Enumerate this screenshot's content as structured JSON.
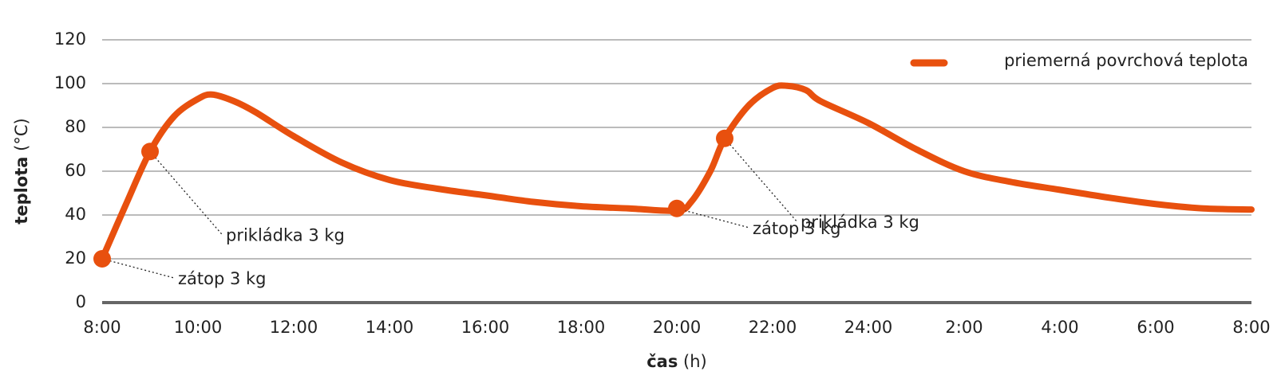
{
  "chart_data": {
    "type": "line",
    "ylabel": "teplota",
    "ylabel_unit": "(°C)",
    "xlabel": "čas",
    "xlabel_unit": "(h)",
    "xlim": [
      8,
      32
    ],
    "xticks": [
      {
        "value": 8,
        "label": "8:00"
      },
      {
        "value": 10,
        "label": "10:00"
      },
      {
        "value": 12,
        "label": "12:00"
      },
      {
        "value": 14,
        "label": "14:00"
      },
      {
        "value": 16,
        "label": "16:00"
      },
      {
        "value": 18,
        "label": "18:00"
      },
      {
        "value": 20,
        "label": "20:00"
      },
      {
        "value": 22,
        "label": "22:00"
      },
      {
        "value": 24,
        "label": "24:00"
      },
      {
        "value": 26,
        "label": "2:00"
      },
      {
        "value": 28,
        "label": "4:00"
      },
      {
        "value": 30,
        "label": "6:00"
      },
      {
        "value": 32,
        "label": "8:00"
      }
    ],
    "ylim": [
      0,
      120
    ],
    "yticks": [
      0,
      20,
      40,
      60,
      80,
      100,
      120
    ],
    "grid": true,
    "legend": "top-right",
    "series": [
      {
        "name": "priemerná povrchová teplota",
        "color": "#e8500e",
        "x": [
          8,
          8.5,
          9,
          9.5,
          10,
          10.3,
          10.75,
          11.2,
          12,
          13,
          14,
          15,
          16,
          17,
          18,
          19,
          20,
          20.3,
          20.7,
          21,
          21.5,
          22,
          22.3,
          22.7,
          23,
          24,
          25,
          26,
          27,
          28,
          29,
          30,
          31,
          32
        ],
        "y": [
          20,
          45,
          69,
          85,
          93,
          95,
          92,
          87,
          76,
          64,
          56,
          52,
          49,
          46,
          44,
          43,
          42,
          46,
          60,
          75,
          90,
          98,
          99,
          97,
          92,
          82,
          70,
          60,
          55,
          51.5,
          48,
          45,
          43,
          42.5
        ]
      }
    ],
    "annotations": [
      {
        "text": "zátop 3 kg",
        "x": 8,
        "y": 20
      },
      {
        "text": "prikládka 3 kg",
        "x": 9,
        "y": 69
      },
      {
        "text": "zátop 3 kg",
        "x": 20,
        "y": 43
      },
      {
        "text": "prikládka 3 kg",
        "x": 21,
        "y": 75
      }
    ]
  }
}
